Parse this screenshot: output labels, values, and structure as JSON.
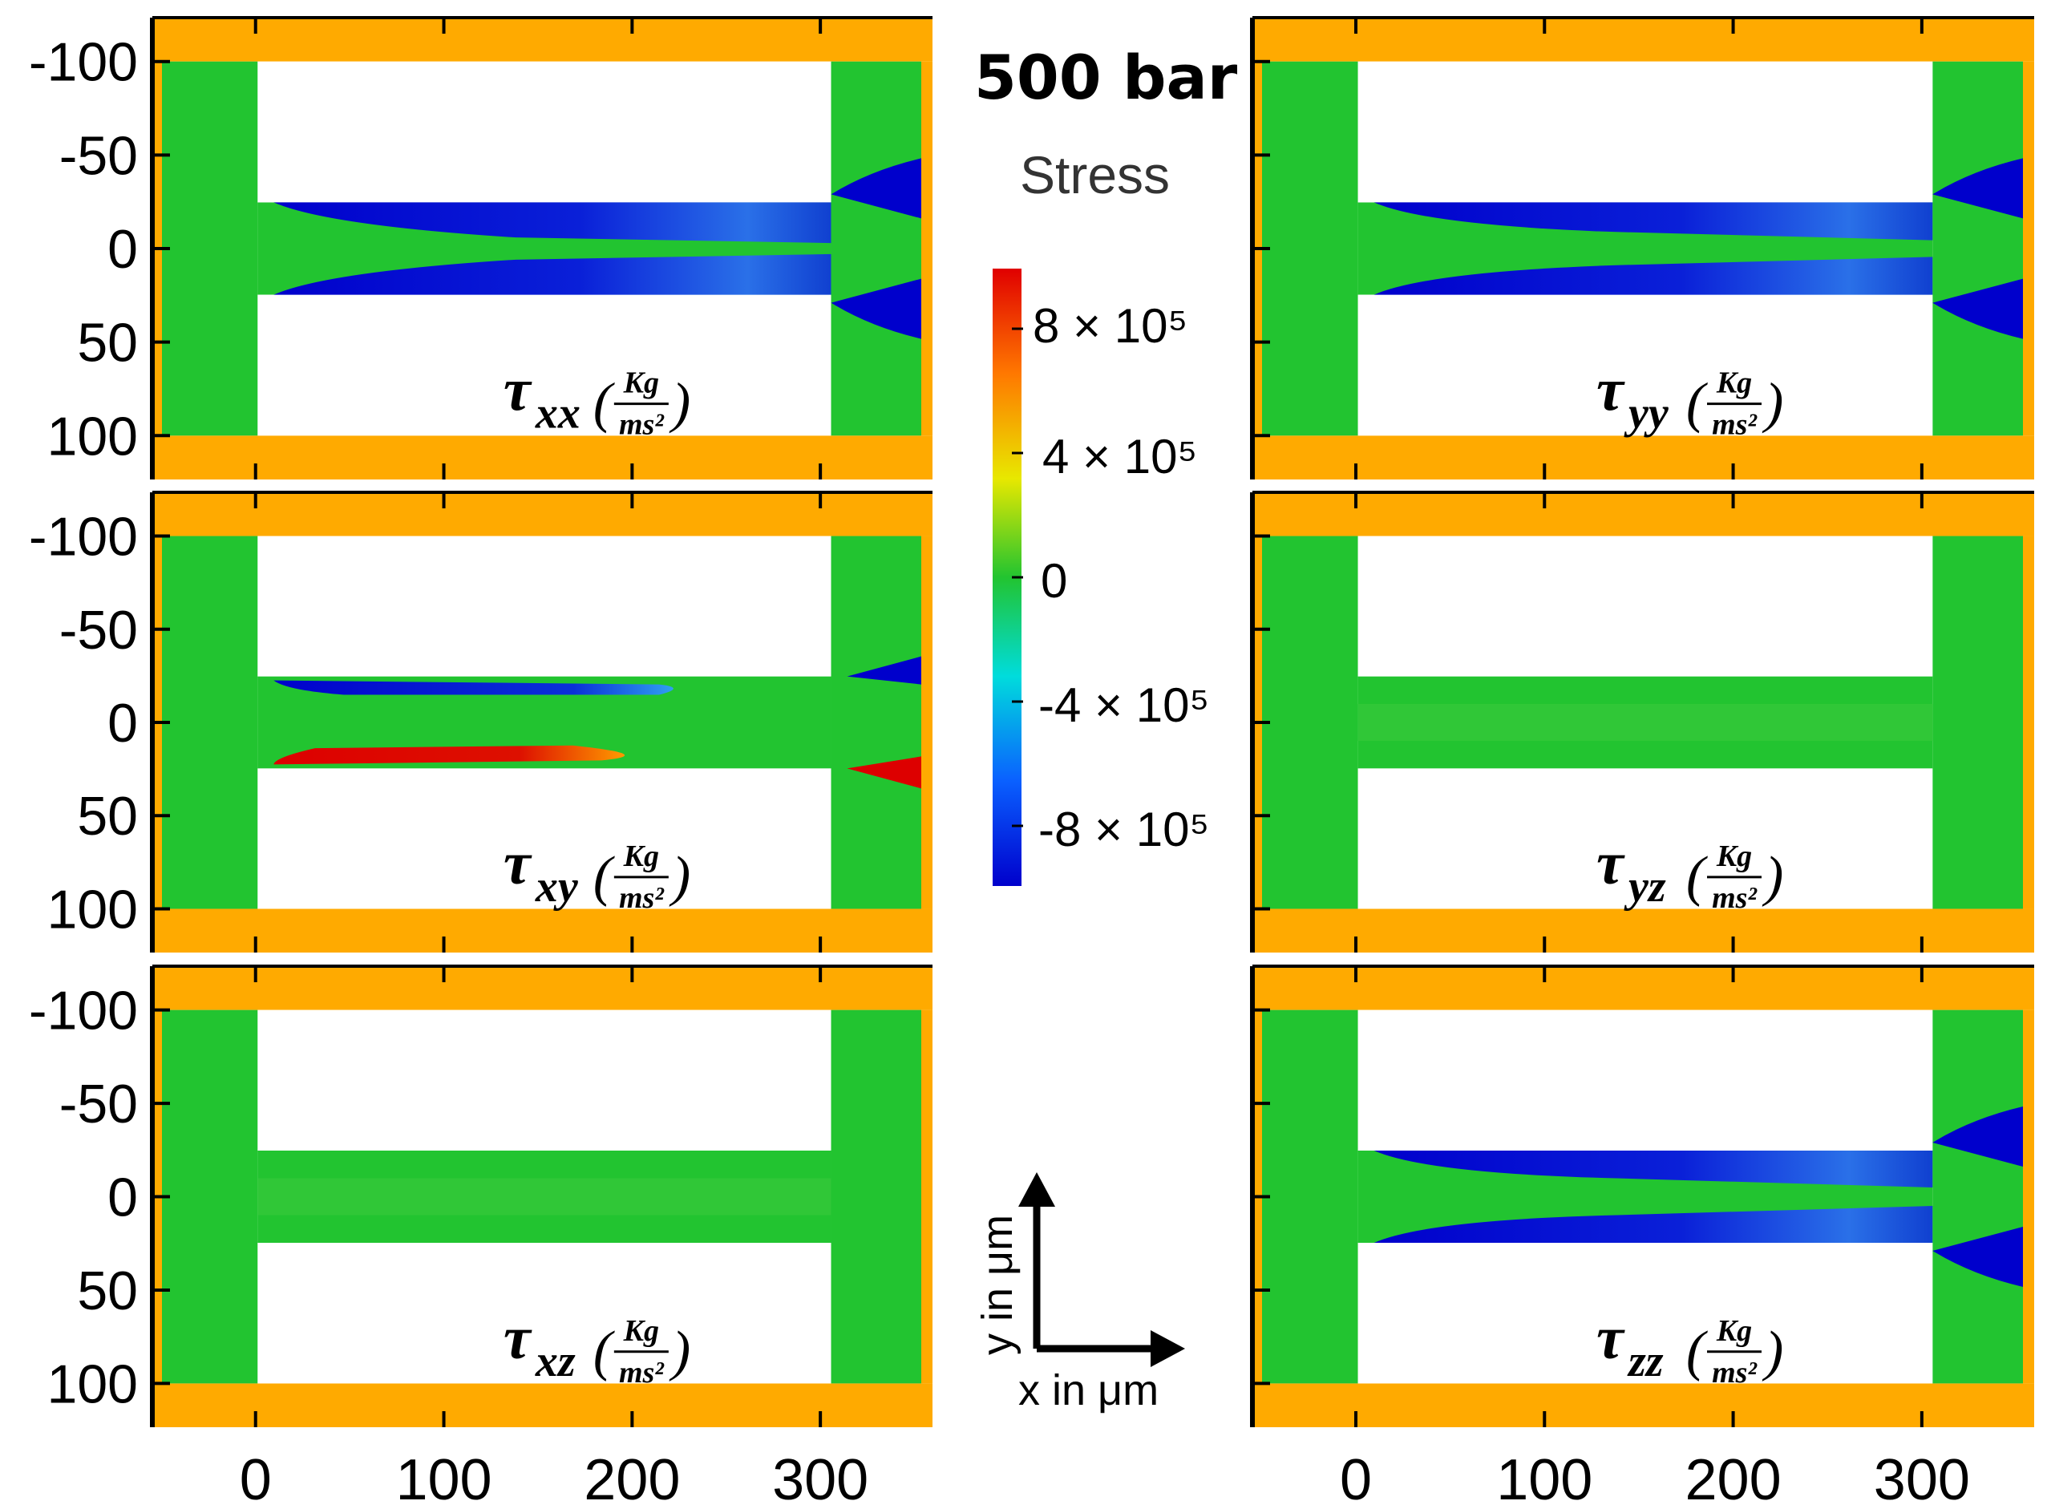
{
  "header": {
    "title": "500 bar",
    "stress_label": "Stress"
  },
  "colorbar": {
    "labels": [
      "8 × 10⁵",
      "4 × 10⁵",
      "0",
      "-4 × 10⁵",
      "-8 × 10⁵"
    ],
    "colors": [
      "#e60000",
      "#ff8c00",
      "#f0e000",
      "#22c430",
      "#00dddd",
      "#0a6cff",
      "#0000cc"
    ]
  },
  "axes": {
    "y_ticks": [
      "-100",
      "-50",
      "0",
      "50",
      "100"
    ],
    "x_ticks": [
      "0",
      "100",
      "200",
      "300"
    ],
    "x_axis_label": "x in μm",
    "y_axis_label": "y in μm"
  },
  "panels": [
    {
      "id": "txx",
      "sub": "xx"
    },
    {
      "id": "tyy",
      "sub": "yy"
    },
    {
      "id": "txy",
      "sub": "xy"
    },
    {
      "id": "tyz",
      "sub": "yz"
    },
    {
      "id": "txz",
      "sub": "xz"
    },
    {
      "id": "tzz",
      "sub": "zz"
    }
  ],
  "unit": {
    "numerator": "Kg",
    "denominator": "ms²"
  },
  "symbol": "τ",
  "colors": {
    "wall": "#ffaa00",
    "fluid": "#22c430",
    "blue": "#0000cc",
    "red": "#dd0000"
  }
}
